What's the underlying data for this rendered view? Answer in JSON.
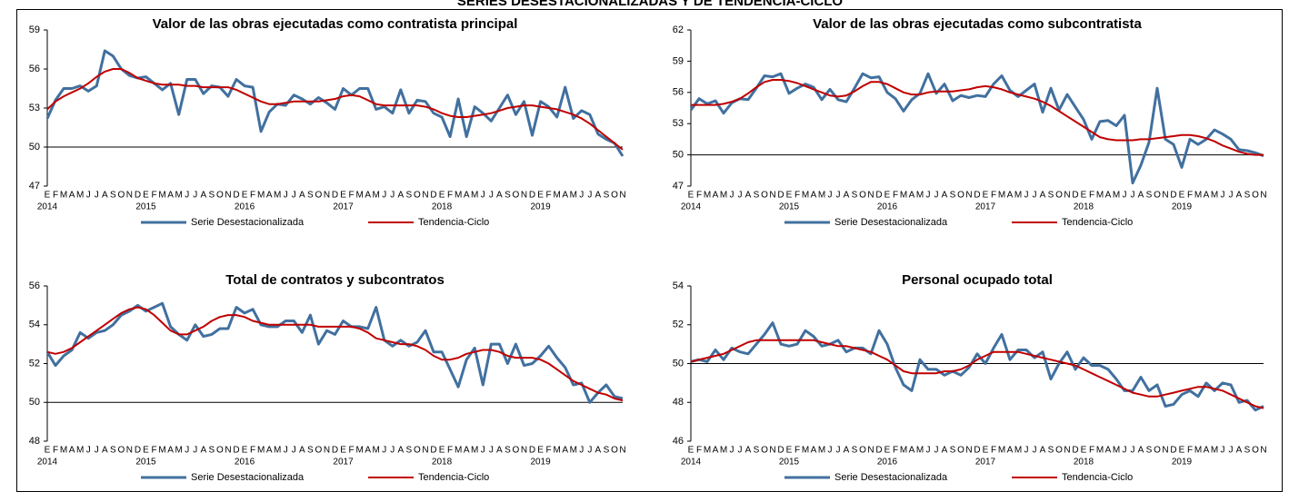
{
  "title": "SERIES DESESTACIONALIZADAS Y DE TENDENCIA-CICLO",
  "chart_data": [
    {
      "type": "line",
      "title": "Valor de las obras ejecutadas como contratista principal",
      "categories": [
        "E",
        "F",
        "M",
        "A",
        "M",
        "J",
        "J",
        "A",
        "S",
        "O",
        "N",
        "D",
        "E",
        "F",
        "M",
        "A",
        "M",
        "J",
        "J",
        "A",
        "S",
        "O",
        "N",
        "D",
        "E",
        "F",
        "M",
        "A",
        "M",
        "J",
        "J",
        "A",
        "S",
        "O",
        "N",
        "D",
        "E",
        "F",
        "M",
        "A",
        "M",
        "J",
        "J",
        "A",
        "S",
        "O",
        "N",
        "D",
        "E",
        "F",
        "M",
        "A",
        "M",
        "J",
        "J",
        "A",
        "S",
        "O",
        "N",
        "D",
        "E",
        "F",
        "M",
        "A",
        "M",
        "J",
        "J",
        "A",
        "S",
        "O",
        "N"
      ],
      "years": [
        "2014",
        "2015",
        "2016",
        "2017",
        "2018",
        "2019"
      ],
      "ylim": [
        47,
        59
      ],
      "yticks": [
        47,
        50,
        53,
        56,
        59
      ],
      "x_axis_crosses": 50,
      "series": [
        {
          "name": "Serie Desestacionalizada",
          "color": "#41709f",
          "values": [
            52.2,
            53.6,
            54.5,
            54.5,
            54.7,
            54.3,
            54.7,
            57.4,
            57.0,
            56.0,
            55.5,
            55.3,
            55.4,
            54.9,
            54.4,
            54.9,
            52.5,
            55.2,
            55.2,
            54.1,
            54.7,
            54.6,
            53.9,
            55.2,
            54.7,
            54.6,
            51.2,
            52.7,
            53.3,
            53.2,
            54.0,
            53.7,
            53.3,
            53.8,
            53.4,
            52.9,
            54.5,
            54.0,
            54.5,
            54.5,
            52.9,
            53.1,
            52.6,
            54.4,
            52.6,
            53.6,
            53.5,
            52.6,
            52.3,
            50.8,
            53.7,
            50.8,
            53.1,
            52.6,
            52.0,
            53.0,
            54.0,
            52.5,
            53.5,
            50.9,
            53.5,
            53.1,
            52.3,
            54.6,
            52.2,
            52.8,
            52.5,
            51.0,
            50.6,
            50.3,
            49.3
          ]
        },
        {
          "name": "Tendencia-Ciclo",
          "color": "#c00000",
          "values": [
            52.9,
            53.5,
            53.9,
            54.2,
            54.5,
            54.9,
            55.4,
            55.8,
            56.0,
            56.0,
            55.7,
            55.3,
            55.1,
            54.9,
            54.8,
            54.8,
            54.8,
            54.7,
            54.7,
            54.6,
            54.6,
            54.6,
            54.6,
            54.4,
            54.1,
            53.8,
            53.5,
            53.3,
            53.3,
            53.4,
            53.5,
            53.5,
            53.5,
            53.5,
            53.6,
            53.7,
            53.9,
            54.0,
            53.9,
            53.6,
            53.3,
            53.2,
            53.2,
            53.2,
            53.2,
            53.2,
            53.1,
            52.9,
            52.6,
            52.4,
            52.3,
            52.3,
            52.4,
            52.5,
            52.6,
            52.8,
            53.0,
            53.1,
            53.2,
            53.2,
            53.1,
            53.0,
            52.9,
            52.7,
            52.5,
            52.2,
            51.8,
            51.3,
            50.8,
            50.3,
            49.8
          ]
        }
      ]
    },
    {
      "type": "line",
      "title": "Valor de las obras ejecutadas como subcontratista",
      "categories": [
        "E",
        "F",
        "M",
        "A",
        "M",
        "J",
        "J",
        "A",
        "S",
        "O",
        "N",
        "D",
        "E",
        "F",
        "M",
        "A",
        "M",
        "J",
        "J",
        "A",
        "S",
        "O",
        "N",
        "D",
        "E",
        "F",
        "M",
        "A",
        "M",
        "J",
        "J",
        "A",
        "S",
        "O",
        "N",
        "D",
        "E",
        "F",
        "M",
        "A",
        "M",
        "J",
        "J",
        "A",
        "S",
        "O",
        "N",
        "D",
        "E",
        "F",
        "M",
        "A",
        "M",
        "J",
        "J",
        "A",
        "S",
        "O",
        "N",
        "D",
        "E",
        "F",
        "M",
        "A",
        "M",
        "J",
        "J",
        "A",
        "S",
        "O",
        "N"
      ],
      "years": [
        "2014",
        "2015",
        "2016",
        "2017",
        "2018",
        "2019"
      ],
      "ylim": [
        47,
        62
      ],
      "yticks": [
        47,
        50,
        53,
        56,
        59,
        62
      ],
      "x_axis_crosses": 50,
      "series": [
        {
          "name": "Serie Desestacionalizada",
          "color": "#41709f",
          "values": [
            54.3,
            55.4,
            54.9,
            55.2,
            54.0,
            55.0,
            55.4,
            55.3,
            56.4,
            57.6,
            57.5,
            57.8,
            55.9,
            56.4,
            56.8,
            56.5,
            55.3,
            56.3,
            55.3,
            55.1,
            56.4,
            57.8,
            57.4,
            57.5,
            56.0,
            55.4,
            54.2,
            55.3,
            55.9,
            57.8,
            55.9,
            56.8,
            55.2,
            55.7,
            55.5,
            55.7,
            55.6,
            56.8,
            57.6,
            56.2,
            55.6,
            56.2,
            56.8,
            54.1,
            56.4,
            54.3,
            55.8,
            54.6,
            53.4,
            51.5,
            53.2,
            53.3,
            52.8,
            53.8,
            47.3,
            49.0,
            51.2,
            56.4,
            51.5,
            51.0,
            48.8,
            51.5,
            51.0,
            51.5,
            52.4,
            52.0,
            51.5,
            50.5,
            50.4,
            50.2,
            49.9
          ]
        },
        {
          "name": "Tendencia-Ciclo",
          "color": "#c00000",
          "values": [
            54.8,
            54.8,
            54.8,
            54.8,
            54.9,
            55.1,
            55.4,
            55.9,
            56.5,
            57.0,
            57.2,
            57.2,
            57.1,
            56.9,
            56.6,
            56.3,
            56.0,
            55.7,
            55.6,
            55.7,
            56.1,
            56.6,
            57.0,
            57.0,
            56.8,
            56.4,
            56.0,
            55.8,
            55.8,
            56.0,
            56.1,
            56.1,
            56.1,
            56.2,
            56.3,
            56.5,
            56.6,
            56.5,
            56.3,
            56.0,
            55.8,
            55.6,
            55.4,
            55.1,
            54.7,
            54.2,
            53.7,
            53.2,
            52.7,
            52.2,
            51.7,
            51.5,
            51.4,
            51.4,
            51.4,
            51.5,
            51.5,
            51.6,
            51.7,
            51.8,
            51.9,
            51.9,
            51.8,
            51.6,
            51.3,
            50.9,
            50.6,
            50.3,
            50.1,
            50.0,
            50.0
          ]
        }
      ]
    },
    {
      "type": "line",
      "title": "Total de contratos y subcontratos",
      "categories": [
        "E",
        "F",
        "M",
        "A",
        "M",
        "J",
        "J",
        "A",
        "S",
        "O",
        "N",
        "D",
        "E",
        "F",
        "M",
        "A",
        "M",
        "J",
        "J",
        "A",
        "S",
        "O",
        "N",
        "D",
        "E",
        "F",
        "M",
        "A",
        "M",
        "J",
        "J",
        "A",
        "S",
        "O",
        "N",
        "D",
        "E",
        "F",
        "M",
        "A",
        "M",
        "J",
        "J",
        "A",
        "S",
        "O",
        "N",
        "D",
        "E",
        "F",
        "M",
        "A",
        "M",
        "J",
        "J",
        "A",
        "S",
        "O",
        "N",
        "D",
        "E",
        "F",
        "M",
        "A",
        "M",
        "J",
        "J",
        "A",
        "S",
        "O",
        "N"
      ],
      "years": [
        "2014",
        "2015",
        "2016",
        "2017",
        "2018",
        "2019"
      ],
      "ylim": [
        48,
        56
      ],
      "yticks": [
        48,
        50,
        52,
        54,
        56
      ],
      "x_axis_crosses": 50,
      "series": [
        {
          "name": "Serie Desestacionalizada",
          "color": "#41709f",
          "values": [
            52.6,
            51.9,
            52.4,
            52.7,
            53.6,
            53.3,
            53.6,
            53.7,
            54.0,
            54.5,
            54.7,
            55.0,
            54.7,
            54.9,
            55.1,
            53.9,
            53.5,
            53.2,
            54.0,
            53.4,
            53.5,
            53.8,
            53.8,
            54.9,
            54.6,
            54.8,
            54.0,
            53.9,
            53.9,
            54.2,
            54.2,
            53.6,
            54.5,
            53.0,
            53.7,
            53.5,
            54.2,
            53.9,
            53.9,
            53.8,
            54.9,
            53.2,
            52.9,
            53.2,
            52.9,
            53.1,
            53.7,
            52.6,
            52.6,
            51.7,
            50.8,
            52.2,
            52.8,
            50.9,
            53.0,
            53.0,
            52.0,
            53.0,
            51.9,
            52.0,
            52.4,
            52.9,
            52.3,
            51.8,
            50.9,
            51.0,
            50.0,
            50.5,
            50.9,
            50.3,
            50.2
          ]
        },
        {
          "name": "Tendencia-Ciclo",
          "color": "#c00000",
          "values": [
            52.6,
            52.5,
            52.6,
            52.8,
            53.1,
            53.4,
            53.7,
            54.0,
            54.3,
            54.6,
            54.8,
            54.9,
            54.8,
            54.5,
            54.1,
            53.7,
            53.5,
            53.5,
            53.7,
            53.9,
            54.2,
            54.4,
            54.5,
            54.5,
            54.4,
            54.2,
            54.1,
            54.0,
            54.0,
            54.0,
            54.0,
            54.0,
            54.0,
            53.9,
            53.9,
            53.9,
            53.9,
            53.9,
            53.8,
            53.6,
            53.3,
            53.2,
            53.1,
            53.0,
            53.0,
            52.9,
            52.7,
            52.4,
            52.2,
            52.2,
            52.3,
            52.5,
            52.6,
            52.7,
            52.7,
            52.6,
            52.4,
            52.3,
            52.3,
            52.3,
            52.2,
            52.0,
            51.7,
            51.4,
            51.1,
            50.9,
            50.7,
            50.5,
            50.4,
            50.2,
            50.1
          ]
        }
      ]
    },
    {
      "type": "line",
      "title": "Personal ocupado total",
      "categories": [
        "E",
        "F",
        "M",
        "A",
        "M",
        "J",
        "J",
        "A",
        "S",
        "O",
        "N",
        "D",
        "E",
        "F",
        "M",
        "A",
        "M",
        "J",
        "J",
        "A",
        "S",
        "O",
        "N",
        "D",
        "E",
        "F",
        "M",
        "A",
        "M",
        "J",
        "J",
        "A",
        "S",
        "O",
        "N",
        "D",
        "E",
        "F",
        "M",
        "A",
        "M",
        "J",
        "J",
        "A",
        "S",
        "O",
        "N",
        "D",
        "E",
        "F",
        "M",
        "A",
        "M",
        "J",
        "J",
        "A",
        "S",
        "O",
        "N",
        "D",
        "E",
        "F",
        "M",
        "A",
        "M",
        "J",
        "J",
        "A",
        "S",
        "O",
        "N"
      ],
      "years": [
        "2014",
        "2015",
        "2016",
        "2017",
        "2018",
        "2019"
      ],
      "ylim": [
        46,
        54
      ],
      "yticks": [
        46,
        48,
        50,
        52,
        54
      ],
      "x_axis_crosses": 50,
      "series": [
        {
          "name": "Serie Desestacionalizada",
          "color": "#41709f",
          "values": [
            50.1,
            50.2,
            50.1,
            50.7,
            50.2,
            50.8,
            50.6,
            50.5,
            51.0,
            51.5,
            52.1,
            51.0,
            50.9,
            51.0,
            51.7,
            51.4,
            50.9,
            51.0,
            51.2,
            50.6,
            50.8,
            50.8,
            50.5,
            51.7,
            51.0,
            49.8,
            48.9,
            48.6,
            50.2,
            49.7,
            49.7,
            49.4,
            49.6,
            49.4,
            49.8,
            50.5,
            50.0,
            50.8,
            51.5,
            50.2,
            50.7,
            50.7,
            50.3,
            50.6,
            49.2,
            50.0,
            50.6,
            49.7,
            50.3,
            49.9,
            49.9,
            49.7,
            49.2,
            48.6,
            48.6,
            49.3,
            48.6,
            48.9,
            47.8,
            47.9,
            48.4,
            48.6,
            48.3,
            49.0,
            48.6,
            49.0,
            48.9,
            48.0,
            48.1,
            47.6,
            47.8
          ]
        },
        {
          "name": "Tendencia-Ciclo",
          "color": "#c00000",
          "values": [
            50.1,
            50.2,
            50.3,
            50.4,
            50.5,
            50.7,
            50.9,
            51.1,
            51.2,
            51.2,
            51.2,
            51.2,
            51.2,
            51.2,
            51.2,
            51.2,
            51.1,
            51.0,
            50.9,
            50.9,
            50.8,
            50.7,
            50.6,
            50.4,
            50.2,
            49.9,
            49.6,
            49.5,
            49.5,
            49.5,
            49.5,
            49.6,
            49.6,
            49.7,
            49.9,
            50.2,
            50.4,
            50.6,
            50.6,
            50.6,
            50.6,
            50.5,
            50.4,
            50.3,
            50.2,
            50.1,
            50.0,
            49.9,
            49.7,
            49.5,
            49.3,
            49.1,
            48.9,
            48.7,
            48.5,
            48.4,
            48.3,
            48.3,
            48.4,
            48.5,
            48.6,
            48.7,
            48.8,
            48.8,
            48.7,
            48.6,
            48.4,
            48.2,
            48.0,
            47.8,
            47.7
          ]
        }
      ]
    }
  ]
}
